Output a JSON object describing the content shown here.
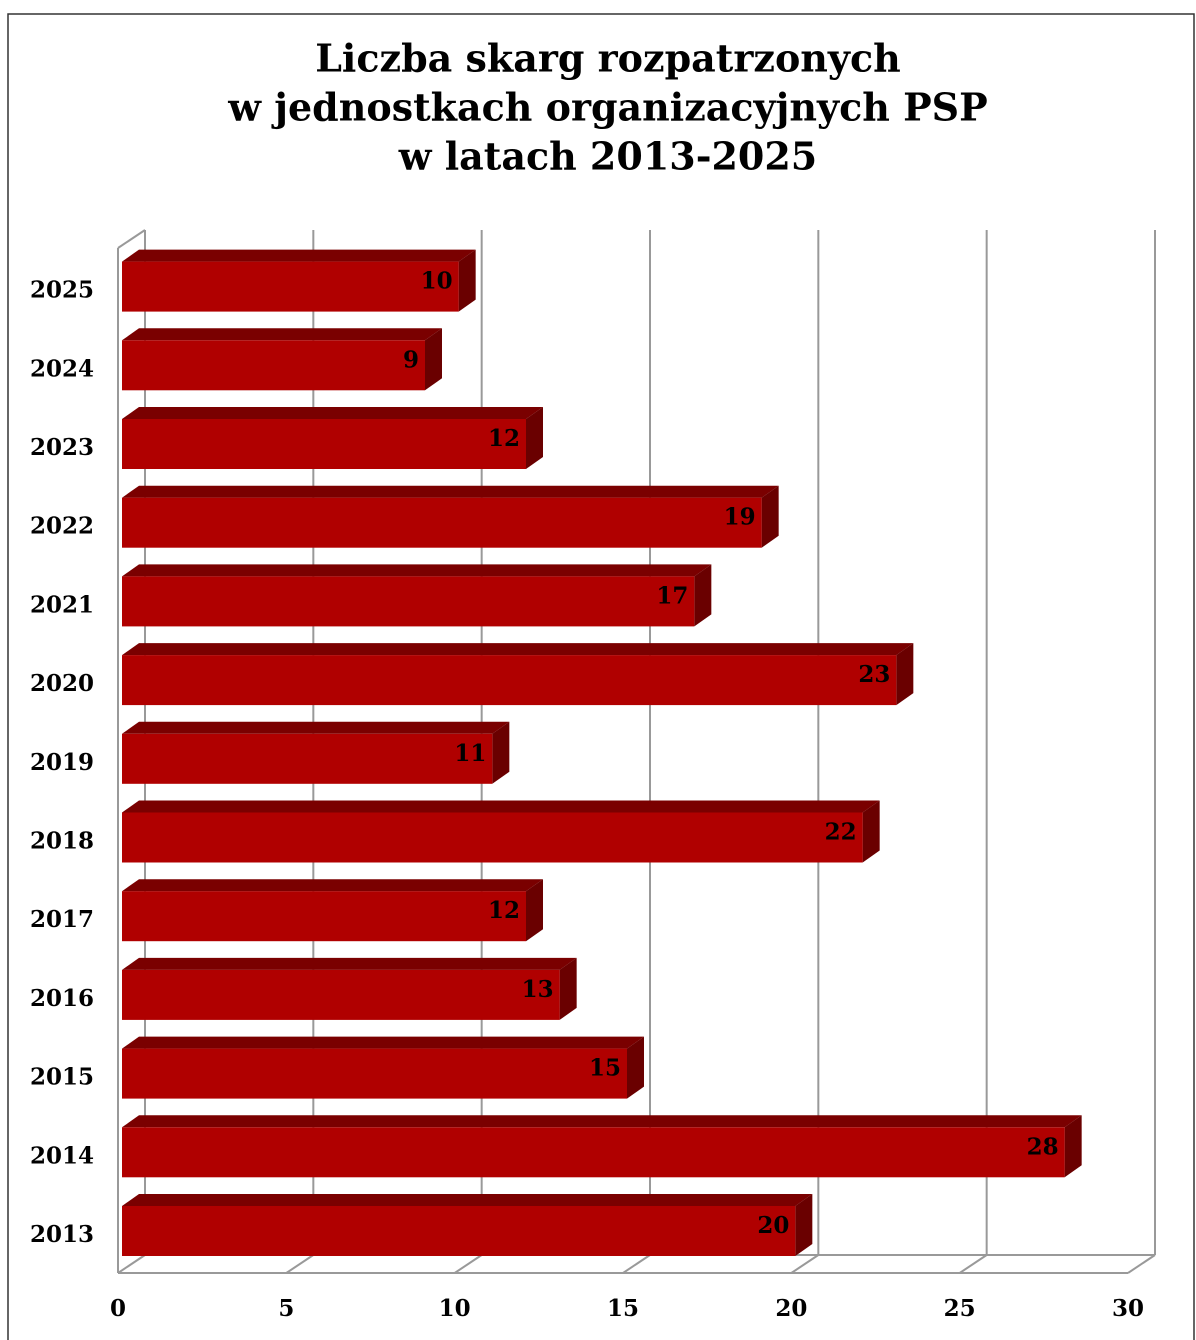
{
  "chart_data": {
    "type": "bar3d_horizontal",
    "title": [
      "Liczba skarg rozpatrzonych",
      "w jednostkach organizacyjnych PSP",
      "w latach 2013-2025"
    ],
    "categories": [
      "2013",
      "2014",
      "2015",
      "2016",
      "2017",
      "2018",
      "2019",
      "2020",
      "2021",
      "2022",
      "2023",
      "2024",
      "2025"
    ],
    "values": [
      20,
      28,
      15,
      13,
      12,
      22,
      11,
      23,
      17,
      19,
      12,
      9,
      10
    ],
    "color": "#b00000",
    "xlim": [
      0,
      30
    ],
    "xticks": [
      0,
      5,
      10,
      15,
      20,
      25,
      30
    ],
    "grid": true
  }
}
